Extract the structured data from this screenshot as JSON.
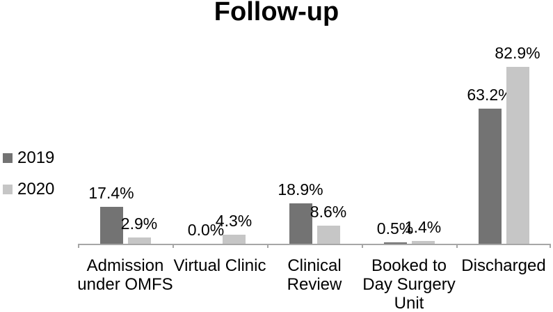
{
  "title": "Follow-up",
  "chart_data": {
    "type": "bar",
    "title": "Follow-up",
    "categories": [
      "Admission under OMFS",
      "Virtual Clinic",
      "Clinical Review",
      "Booked to Day Surgery Unit",
      "Discharged"
    ],
    "category_lines": [
      [
        "Admission",
        "under OMFS"
      ],
      [
        "Virtual Clinic"
      ],
      [
        "Clinical",
        "Review"
      ],
      [
        "Booked to",
        "Day Surgery",
        "Unit"
      ],
      [
        "Discharged"
      ]
    ],
    "series": [
      {
        "name": "2019",
        "color": "#737373",
        "values": [
          17.4,
          0.0,
          18.9,
          0.5,
          63.2
        ],
        "labels": [
          "17.4%",
          "0.0%",
          "18.9%",
          "0.5%",
          "63.2%"
        ]
      },
      {
        "name": "2020",
        "color": "#c6c6c6",
        "values": [
          2.9,
          4.3,
          8.6,
          1.4,
          82.9
        ],
        "labels": [
          "2.9%",
          "4.3%",
          "8.6%",
          "1.4%",
          "82.9%"
        ]
      }
    ],
    "ylim": [
      0,
      100
    ],
    "grid": false,
    "y_axis_visible": false,
    "legend_position": "left",
    "data_labels": "outside-end",
    "axis_color": "#a6a6a6",
    "text_color": "#000000",
    "background": "#ffffff"
  }
}
